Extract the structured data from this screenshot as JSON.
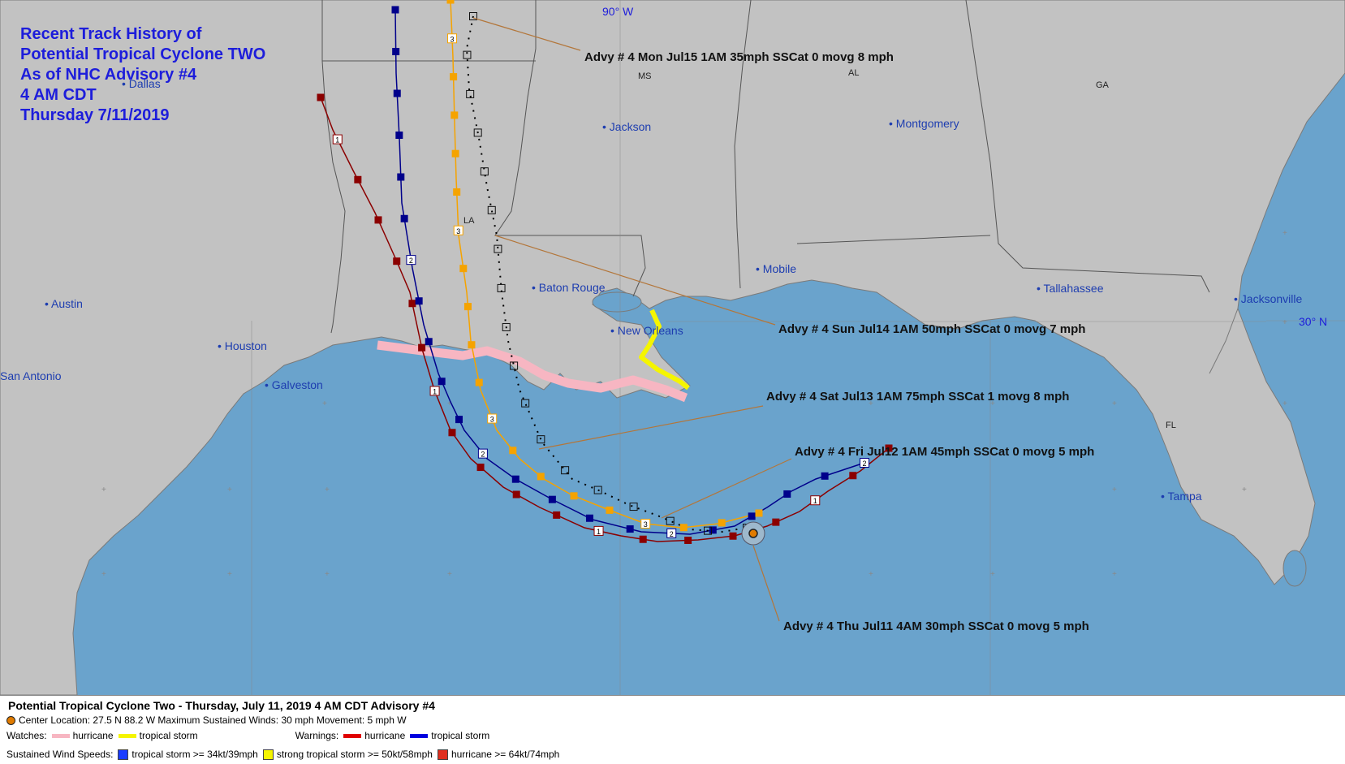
{
  "title": {
    "lines": [
      "Recent Track History of",
      "Potential Tropical Cyclone TWO",
      "As of NHC Advisory #4",
      "4 AM CDT",
      "Thursday 7/11/2019"
    ]
  },
  "map": {
    "longitude_label": "90° W",
    "latitude_label": "30° N",
    "states": [
      "MS",
      "AL",
      "GA",
      "LA",
      "FL"
    ],
    "cities": [
      "Dallas",
      "Jackson",
      "Montgomery",
      "Austin",
      "Baton Rouge",
      "Mobile",
      "Tallahassee",
      "Jacksonville",
      "Houston",
      "New Orleans",
      "San Antonio",
      "Galveston",
      "Tampa"
    ],
    "colors": {
      "water": "#6aa3cc",
      "land": "#c2c2c2",
      "hurricane_watch": "#f7b6c2",
      "tropical_storm_watch": "#f5f500",
      "track_red": "#8b0000",
      "track_blue": "#00008b",
      "track_orange": "#f5a300",
      "track_black": "#000000"
    }
  },
  "advisories": [
    "Advy # 4 Mon Jul15 1AM  35mph SSCat 0 movg 8 mph",
    "Advy # 4 Sun Jul14 1AM  50mph SSCat 0 movg 7 mph",
    "Advy # 4 Sat Jul13 1AM  75mph SSCat 1 movg 8 mph",
    "Advy # 4 Fri Jul12 1AM  45mph SSCat 0 movg 5 mph",
    "Advy # 4 Thu Jul11 4AM  30mph SSCat 0 movg 5 mph"
  ],
  "legend": {
    "heading": "Potential Tropical Cyclone Two  -  Thursday, July 11, 2019  4 AM CDT   Advisory #4",
    "center_info": "Center Location: 27.5 N  88.2 W   Maximum Sustained Winds: 30 mph  Movement: 5 mph W",
    "watches_label": "Watches:",
    "warnings_label": "Warnings:",
    "hurricane": "hurricane",
    "tropical_storm": "tropical storm",
    "winds_label": "Sustained Wind Speeds:",
    "ts_34": "tropical storm >= 34kt/39mph",
    "ts_50": "strong tropical storm >= 50kt/58mph",
    "hu_64": "hurricane >= 64kt/74mph",
    "colors": {
      "watch_hurricane": "#f7b6c2",
      "watch_ts": "#f5f500",
      "warn_hurricane": "#e00000",
      "warn_ts": "#0000e0",
      "sw_ts34": "#1a3cff",
      "sw_ts50": "#f5f500",
      "sw_hu64": "#e03020"
    }
  }
}
